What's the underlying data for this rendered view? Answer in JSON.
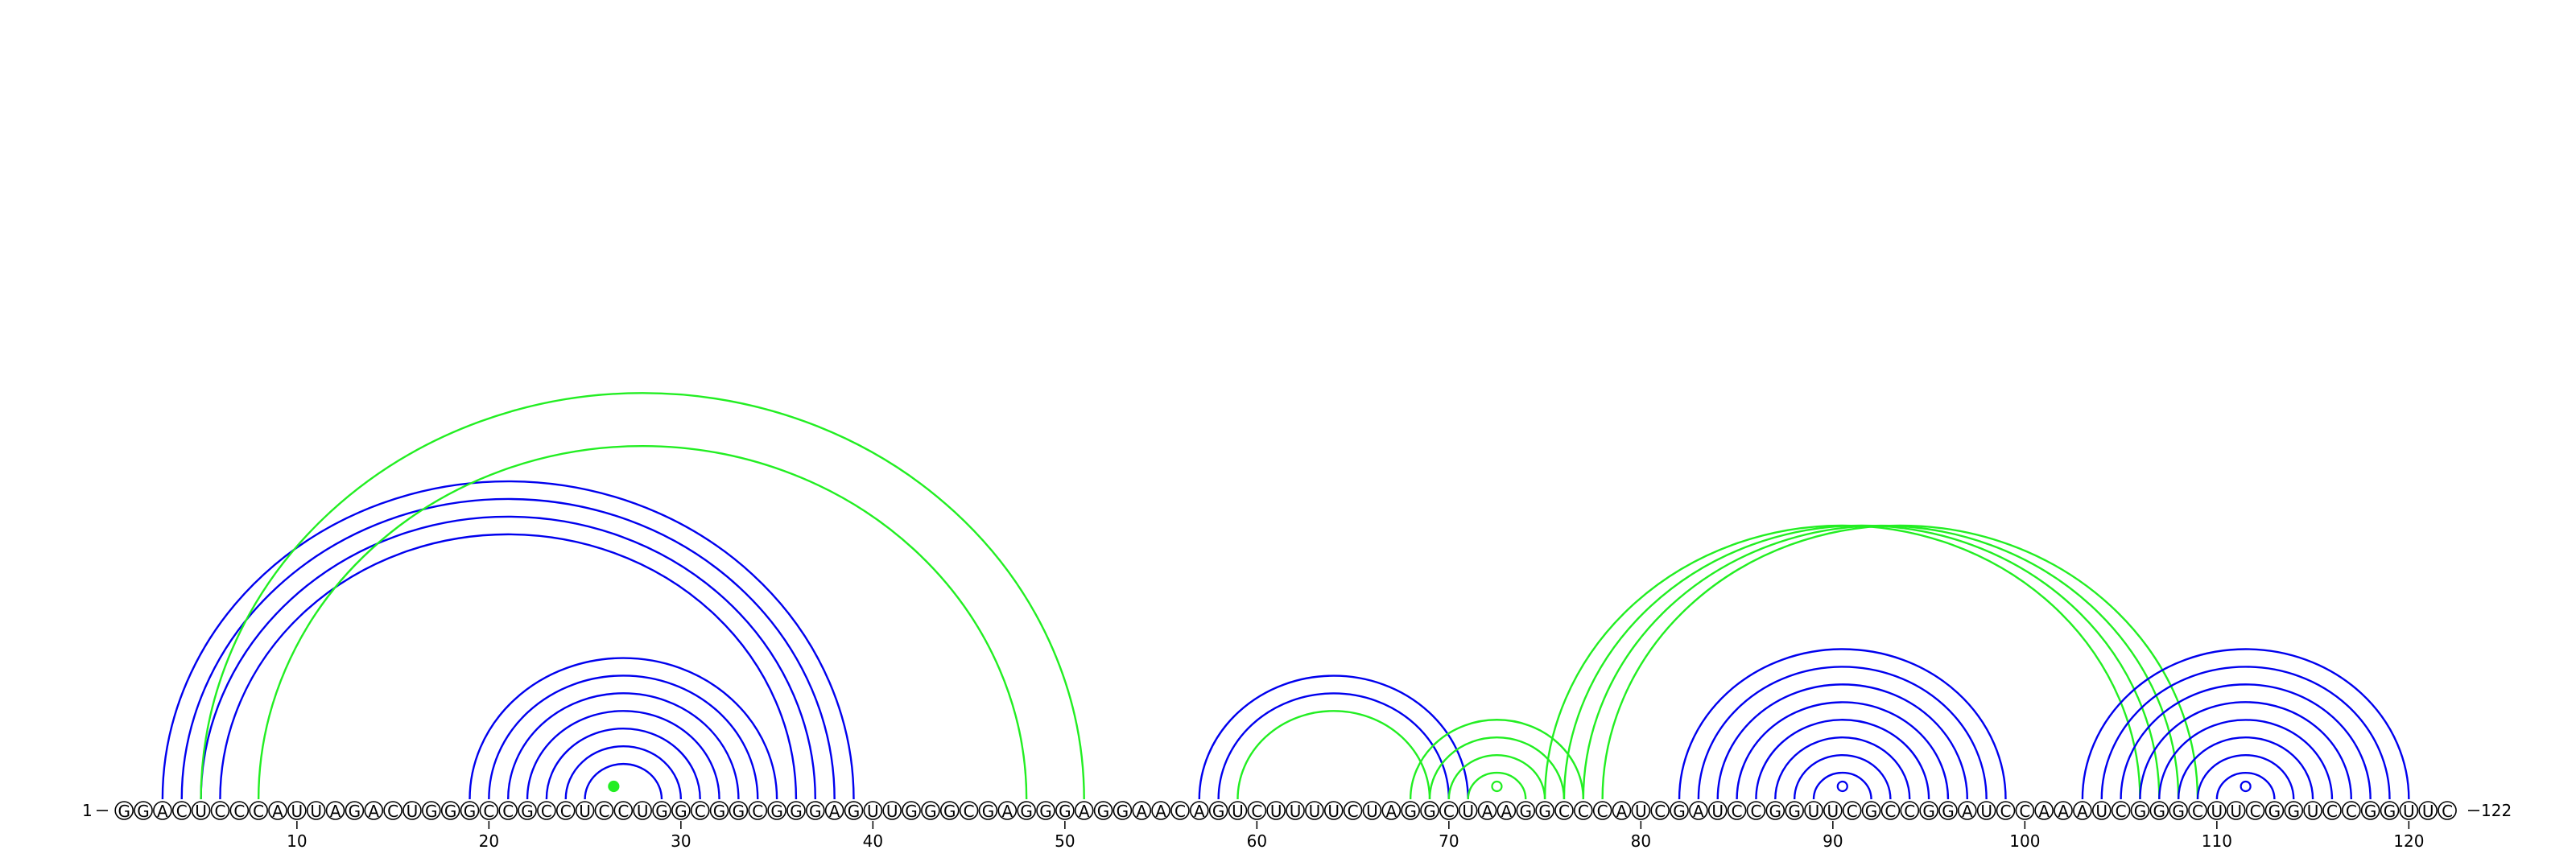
{
  "sequence": "GGACUCCCAUUAGACUGGGCCGCCUCCUGGCGGCGGGAGUUGGGCGAGGGAGGAACAGUCUUUUCUAGGCUAAGGCCCAUCGAUCCGGUUCGCCGGAUCCAAAUCGGGCUUCGGUCCGGUUC",
  "start_label": "1",
  "end_label": "122",
  "ticks": [
    10,
    20,
    30,
    40,
    50,
    60,
    70,
    80,
    90,
    100,
    110,
    120
  ],
  "colors": {
    "blue": "#0000ee",
    "green": "#22ee22",
    "nucleotide_stroke": "#000000"
  },
  "arc_groups": [
    {
      "color": "blue",
      "pairs": [
        [
          3,
          39
        ],
        [
          4,
          38
        ],
        [
          5,
          37
        ],
        [
          6,
          36
        ]
      ]
    },
    {
      "color": "blue",
      "pairs": [
        [
          19,
          35
        ],
        [
          20,
          34
        ],
        [
          21,
          33
        ],
        [
          22,
          32
        ],
        [
          23,
          31
        ],
        [
          24,
          30
        ],
        [
          25,
          29
        ]
      ]
    },
    {
      "color": "green",
      "pairs": [
        [
          26,
          27
        ]
      ]
    },
    {
      "color": "green",
      "pairs": [
        [
          5,
          51
        ]
      ]
    },
    {
      "color": "green",
      "pairs": [
        [
          8,
          48
        ]
      ]
    },
    {
      "color": "blue",
      "pairs": [
        [
          57,
          71
        ],
        [
          58,
          70
        ]
      ]
    },
    {
      "color": "green",
      "pairs": [
        [
          59,
          69
        ]
      ]
    },
    {
      "color": "green",
      "pairs": [
        [
          68,
          77
        ],
        [
          69,
          76
        ],
        [
          70,
          75
        ],
        [
          71,
          74
        ]
      ]
    },
    {
      "color": "green",
      "pairs": [
        [
          72,
          73
        ]
      ]
    },
    {
      "color": "green",
      "pairs": [
        [
          75,
          106
        ],
        [
          76,
          107
        ],
        [
          77,
          108
        ],
        [
          78,
          109
        ]
      ]
    },
    {
      "color": "blue",
      "pairs": [
        [
          82,
          99
        ],
        [
          83,
          98
        ],
        [
          84,
          97
        ],
        [
          85,
          96
        ],
        [
          86,
          95
        ],
        [
          87,
          94
        ],
        [
          88,
          93
        ],
        [
          89,
          92
        ]
      ]
    },
    {
      "color": "blue",
      "pairs": [
        [
          90,
          91
        ]
      ]
    },
    {
      "color": "blue",
      "pairs": [
        [
          103,
          120
        ],
        [
          104,
          119
        ],
        [
          105,
          118
        ],
        [
          106,
          117
        ],
        [
          107,
          116
        ],
        [
          108,
          115
        ],
        [
          109,
          114
        ],
        [
          110,
          113
        ]
      ]
    },
    {
      "color": "blue",
      "pairs": [
        [
          111,
          112
        ]
      ]
    }
  ]
}
